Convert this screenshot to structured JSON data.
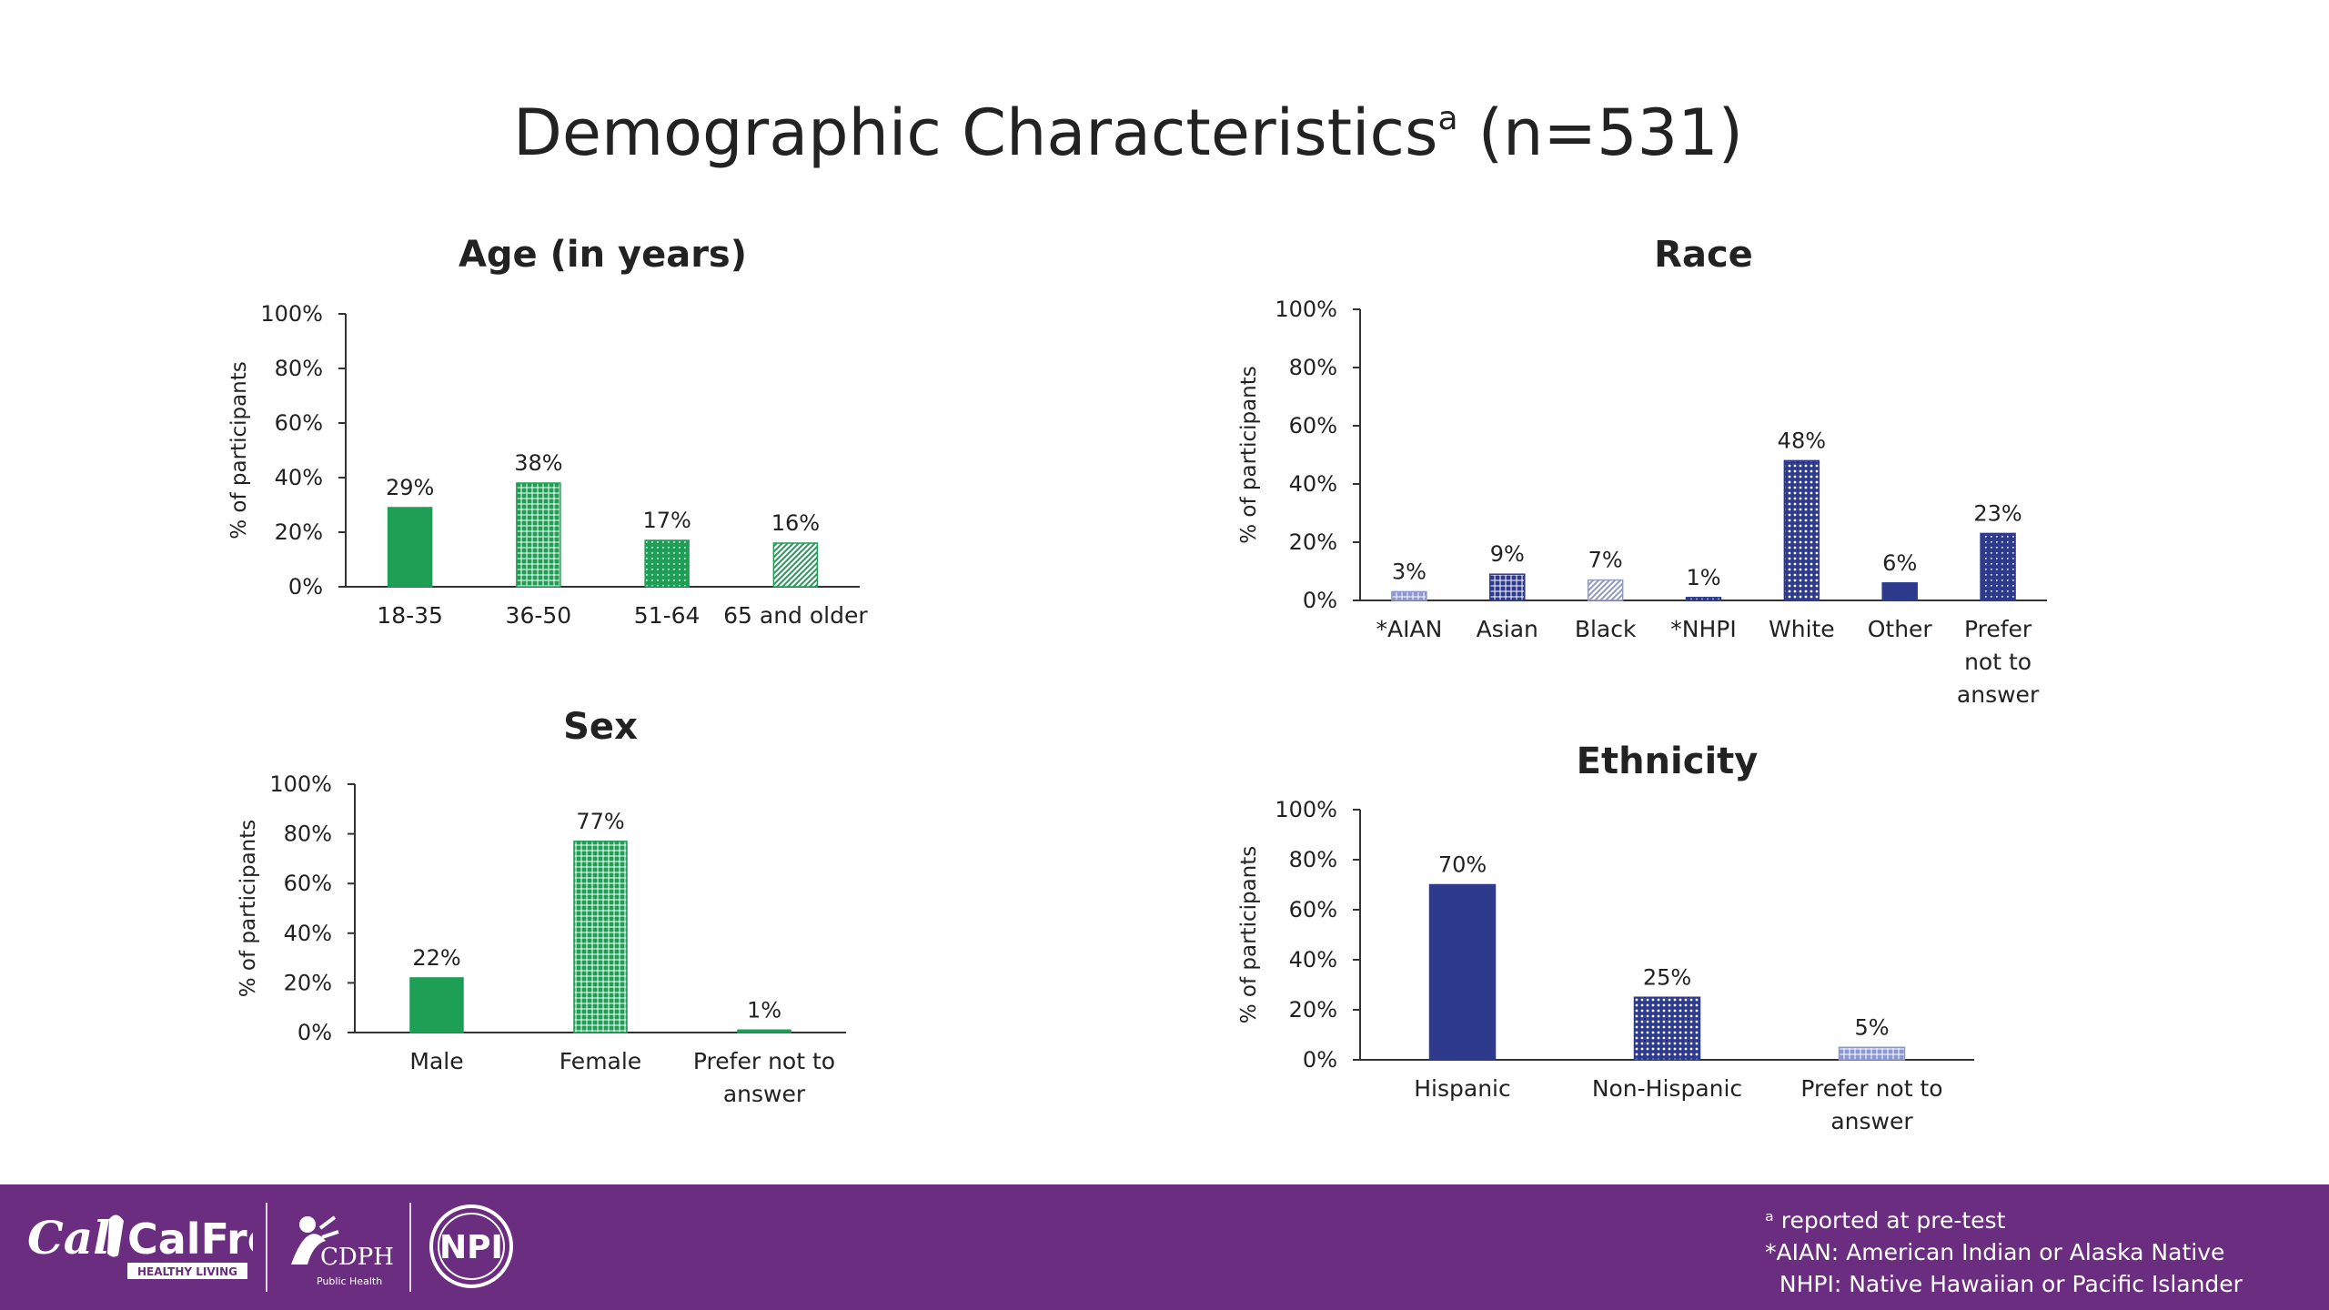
{
  "title": {
    "main": "Demographic Characteristics",
    "sup": "a",
    "n": " (n=531)"
  },
  "colors": {
    "green": "#1f9e55",
    "navy": "#2e3a8c",
    "light_navy": "#8c98cf",
    "footer": "#6b2d7f"
  },
  "chart_data": [
    {
      "id": "age",
      "type": "bar",
      "title": "Age (in years)",
      "ylabel": "% of participants",
      "ylim": [
        0,
        100
      ],
      "yticks": [
        "0%",
        "20%",
        "40%",
        "60%",
        "80%",
        "100%"
      ],
      "categories": [
        [
          "18-35"
        ],
        [
          "36-50"
        ],
        [
          "51-64"
        ],
        [
          "65 and older"
        ]
      ],
      "values": [
        29,
        38,
        17,
        16
      ],
      "labels": [
        "29%",
        "38%",
        "17%",
        "16%"
      ],
      "fills": [
        "solid-green",
        "grid-green",
        "dots-green",
        "diag-green"
      ]
    },
    {
      "id": "race",
      "type": "bar",
      "title": "Race",
      "ylabel": "% of participants",
      "ylim": [
        0,
        100
      ],
      "yticks": [
        "0%",
        "20%",
        "40%",
        "60%",
        "80%",
        "100%"
      ],
      "categories": [
        [
          "*AIAN"
        ],
        [
          "Asian"
        ],
        [
          "Black"
        ],
        [
          "*NHPI"
        ],
        [
          "White"
        ],
        [
          "Other"
        ],
        [
          "Prefer",
          "not to",
          "answer"
        ]
      ],
      "values": [
        3,
        9,
        7,
        1,
        48,
        6,
        23
      ],
      "labels": [
        "3%",
        "9%",
        "7%",
        "1%",
        "48%",
        "6%",
        "23%"
      ],
      "fills": [
        "grid-lightnavy",
        "grid-navy",
        "diag-lightnavy",
        "grid-navy",
        "circles-navy",
        "solid-navy",
        "dots-navy"
      ]
    },
    {
      "id": "sex",
      "type": "bar",
      "title": "Sex",
      "ylabel": "% of participants",
      "ylim": [
        0,
        100
      ],
      "yticks": [
        "0%",
        "20%",
        "40%",
        "60%",
        "80%",
        "100%"
      ],
      "categories": [
        [
          "Male"
        ],
        [
          "Female"
        ],
        [
          "Prefer not to",
          "answer"
        ]
      ],
      "values": [
        22,
        77,
        1
      ],
      "labels": [
        "22%",
        "77%",
        "1%"
      ],
      "fills": [
        "solid-green",
        "grid-green",
        "solid-green"
      ]
    },
    {
      "id": "ethnicity",
      "type": "bar",
      "title": "Ethnicity",
      "ylabel": "% of participants",
      "ylim": [
        0,
        100
      ],
      "yticks": [
        "0%",
        "20%",
        "40%",
        "60%",
        "80%",
        "100%"
      ],
      "categories": [
        [
          "Hispanic"
        ],
        [
          "Non-Hispanic"
        ],
        [
          "Prefer not to",
          "answer"
        ]
      ],
      "values": [
        70,
        25,
        5
      ],
      "labels": [
        "70%",
        "25%",
        "5%"
      ],
      "fills": [
        "solid-navy",
        "circles-navy",
        "grid-lightnavy"
      ]
    }
  ],
  "footer": {
    "notes": [
      "ᵃ reported at pre-test",
      "*AIAN: American Indian or Alaska Native",
      "  NHPI: Native Hawaiian or Pacific Islander"
    ],
    "logos": [
      {
        "icon": "calfresh-logo",
        "text": "CalFresh",
        "sub": "HEALTHY LIVING"
      },
      {
        "icon": "cdph-logo",
        "text": "CDPH",
        "sub": "Public Health"
      },
      {
        "icon": "npi-logo",
        "text": "NPI"
      }
    ]
  }
}
